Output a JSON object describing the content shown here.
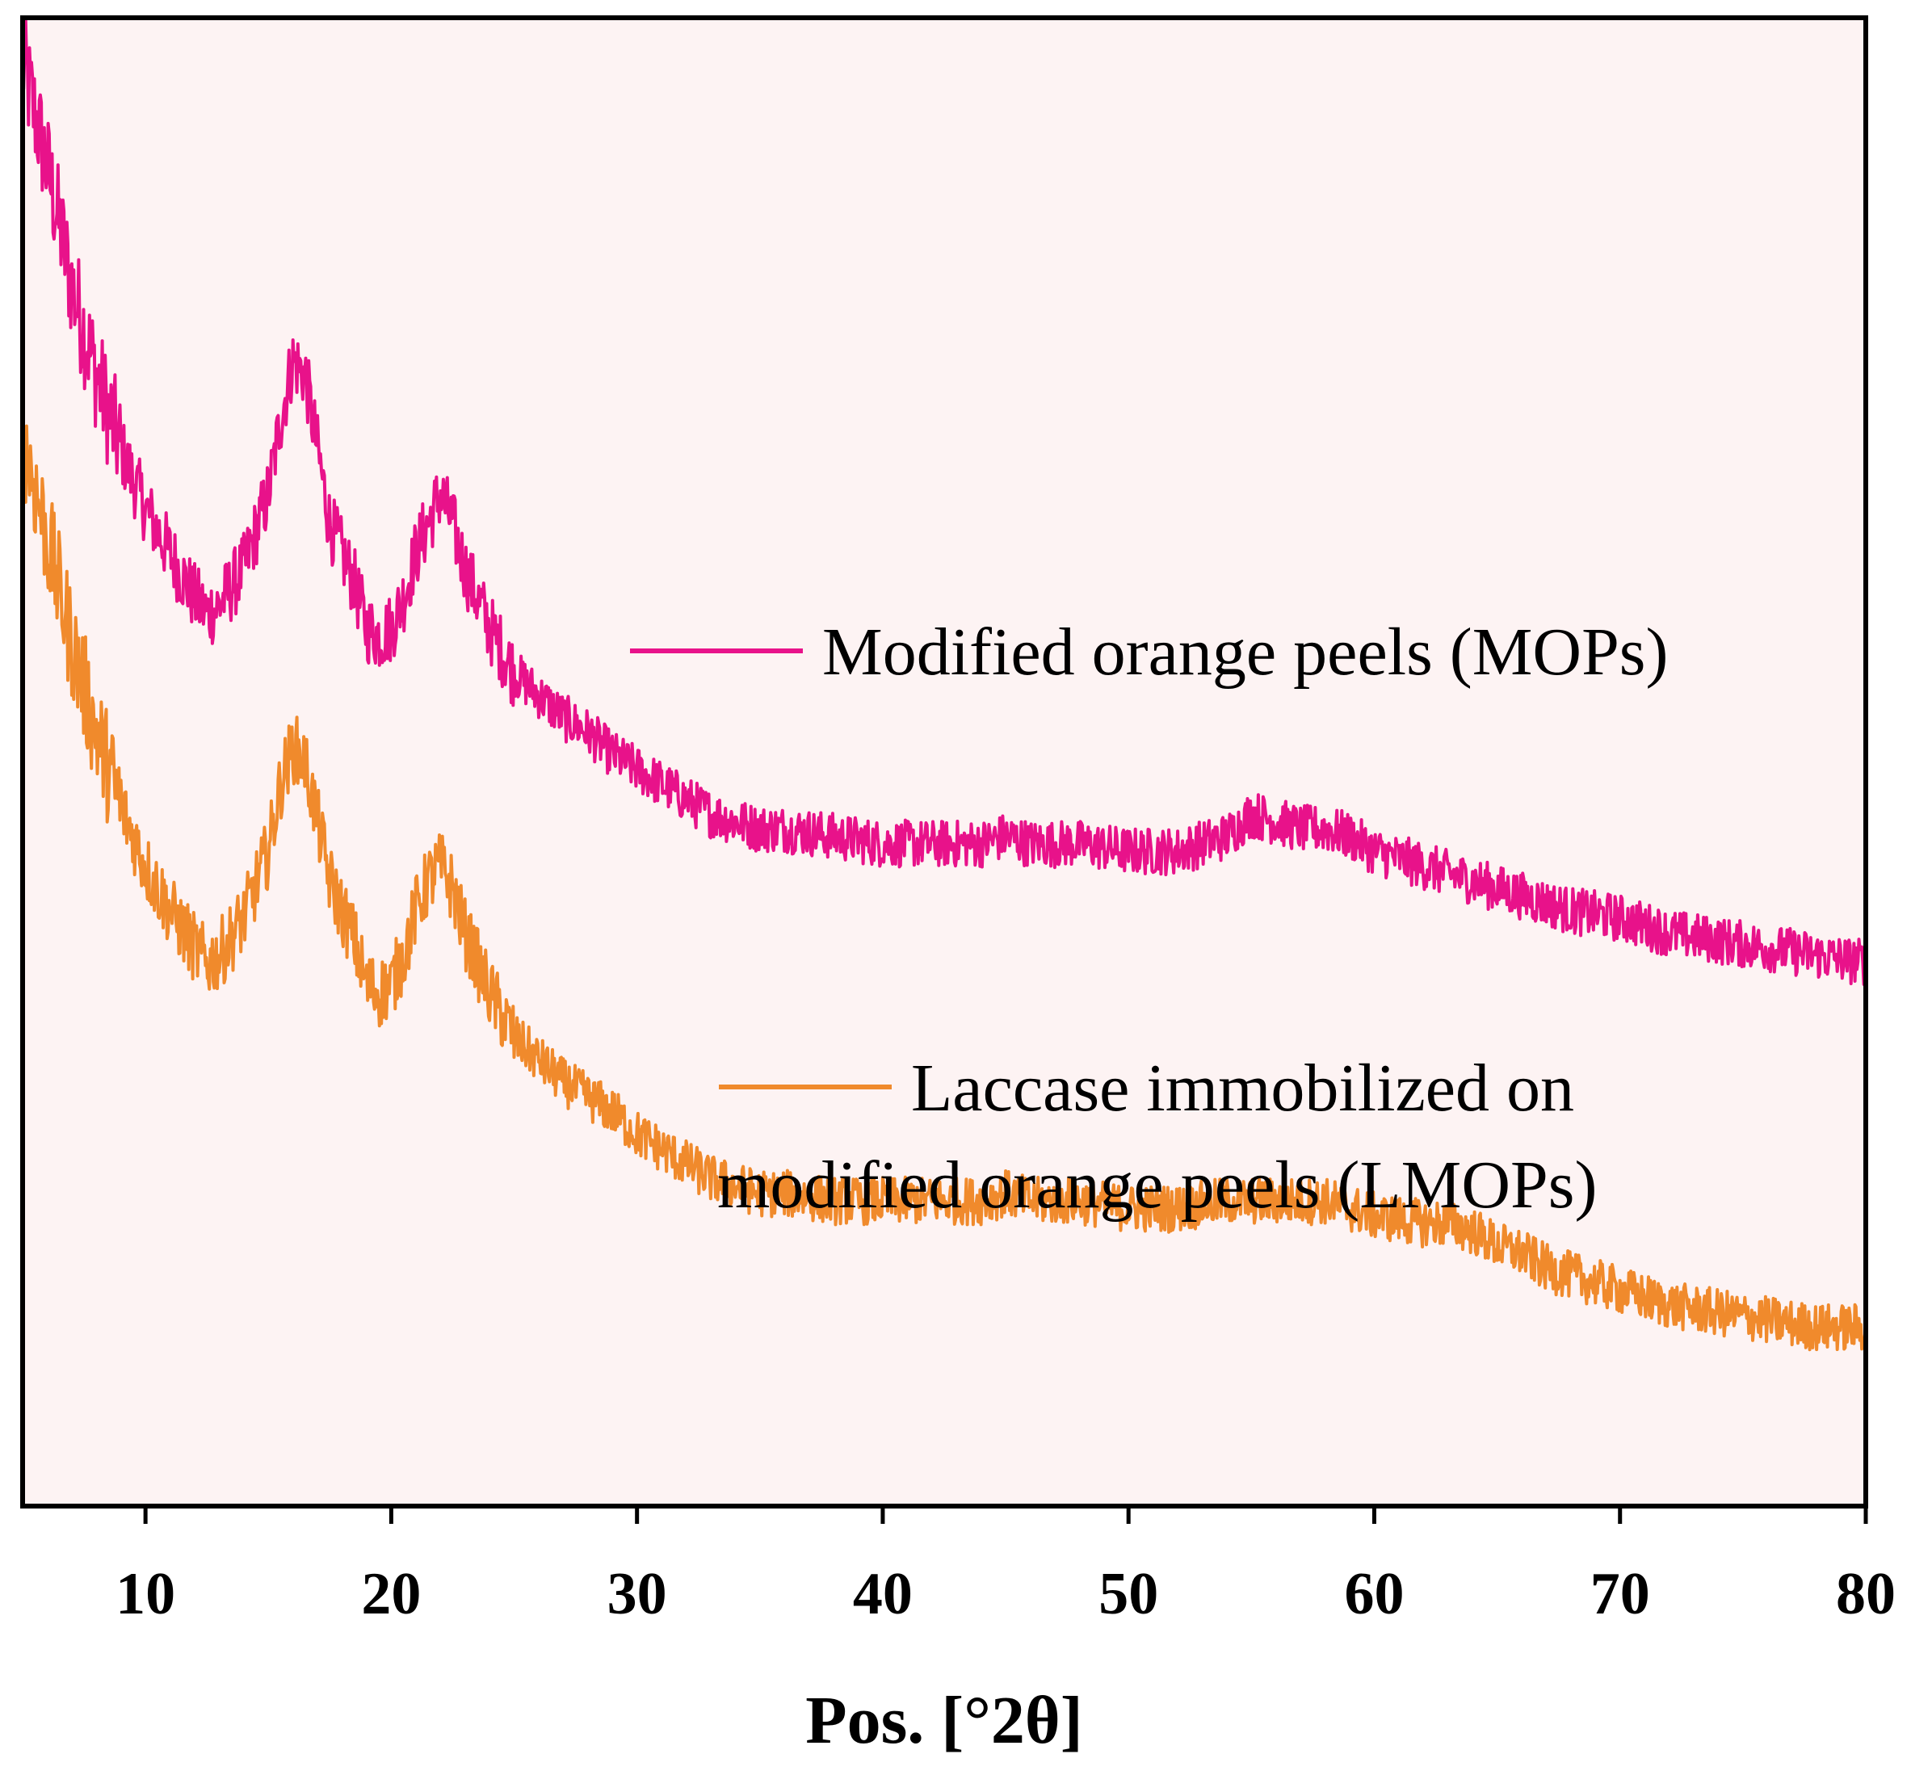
{
  "chart_data": {
    "type": "line",
    "title": "",
    "xlabel": "Pos. [°2θ]",
    "ylabel": "",
    "xlim": [
      5,
      80
    ],
    "ylim": [
      0,
      100
    ],
    "xticks": [
      10,
      20,
      30,
      40,
      50,
      60,
      70,
      80
    ],
    "xtick_labels": [
      "10",
      "20",
      "30",
      "40",
      "50",
      "60",
      "70",
      "80"
    ],
    "y_axis_ticks_shown": false,
    "grid": false,
    "background_color": "#fdf3f3",
    "legend_position": "right, inside plot",
    "series": [
      {
        "name": "Modified orange peels (MOPs)",
        "legend_lines": [
          "Modified orange peels (MOPs)"
        ],
        "color": "#e8128a",
        "x": [
          5,
          6,
          7,
          8,
          9,
          10,
          11,
          12,
          12.5,
          13,
          14,
          15,
          15.5,
          16,
          16.5,
          17,
          17.5,
          18,
          18.5,
          19,
          19.5,
          20,
          20.5,
          21,
          21.5,
          22,
          22.5,
          23,
          24,
          25,
          26,
          27,
          28,
          29,
          30,
          31,
          32,
          33,
          34,
          35,
          36,
          38,
          40,
          42,
          44,
          45,
          46,
          48,
          50,
          52,
          53,
          54,
          55,
          56,
          57,
          58,
          59,
          60,
          61,
          62,
          63,
          64,
          65,
          66,
          67,
          68,
          70,
          72,
          74,
          76,
          78,
          80
        ],
        "y": [
          97,
          90,
          82,
          76,
          71,
          67,
          64,
          61,
          60,
          60.5,
          63,
          68,
          73,
          77,
          76,
          71,
          66,
          64,
          62,
          59,
          58.5,
          59,
          61,
          64,
          66,
          68,
          66,
          63,
          59,
          56,
          54.5,
          53,
          52,
          50.5,
          49.5,
          48.5,
          47.5,
          46.5,
          46,
          45.5,
          45.5,
          45,
          44.5,
          44.5,
          44.5,
          45,
          44.5,
          44.5,
          44,
          44,
          44.5,
          45,
          46.5,
          46,
          45.5,
          45.5,
          45,
          44,
          43.5,
          43,
          42.5,
          42,
          41.5,
          41,
          40.5,
          40,
          39.5,
          38.5,
          38,
          37.5,
          37,
          36.5
        ],
        "noise": 1.6
      },
      {
        "name": "Laccase immobilized on modified orange peels (LMOPs)",
        "legend_lines": [
          "Laccase immobilized on",
          "modified orange peels (LMOPs)"
        ],
        "color": "#f08a2c",
        "x": [
          5,
          6,
          7,
          8,
          9,
          10,
          11,
          12,
          12.5,
          13,
          14,
          15,
          15.5,
          16,
          16.5,
          17,
          17.5,
          18,
          18.5,
          19,
          19.5,
          20,
          20.5,
          21,
          21.5,
          22,
          22.5,
          23,
          24,
          25,
          26,
          27,
          28,
          29,
          30,
          31,
          32,
          33,
          34,
          35,
          36,
          38,
          40,
          42,
          44,
          45,
          46,
          48,
          50,
          52,
          54,
          56,
          58,
          60,
          62,
          63,
          64,
          65,
          66,
          67,
          68,
          70,
          72,
          74,
          76,
          78,
          80
        ],
        "y": [
          72,
          65,
          58,
          52,
          47,
          43,
          40,
          37.5,
          36.5,
          37,
          39.5,
          44,
          48.5,
          51,
          50,
          46,
          42,
          40,
          38,
          35,
          34.5,
          35,
          37,
          40,
          42,
          43,
          41.5,
          38.5,
          34.5,
          31.5,
          30,
          28.5,
          27.5,
          26.5,
          25,
          24,
          23,
          22,
          21.5,
          21,
          21,
          20.5,
          20.5,
          20.5,
          20.5,
          21,
          20.5,
          20.5,
          20,
          20,
          20.5,
          20.5,
          20.5,
          19.5,
          19,
          19,
          18.5,
          17.5,
          17,
          16,
          15.5,
          14.5,
          13.5,
          13,
          12.5,
          12,
          12
        ],
        "noise": 1.6
      }
    ]
  }
}
